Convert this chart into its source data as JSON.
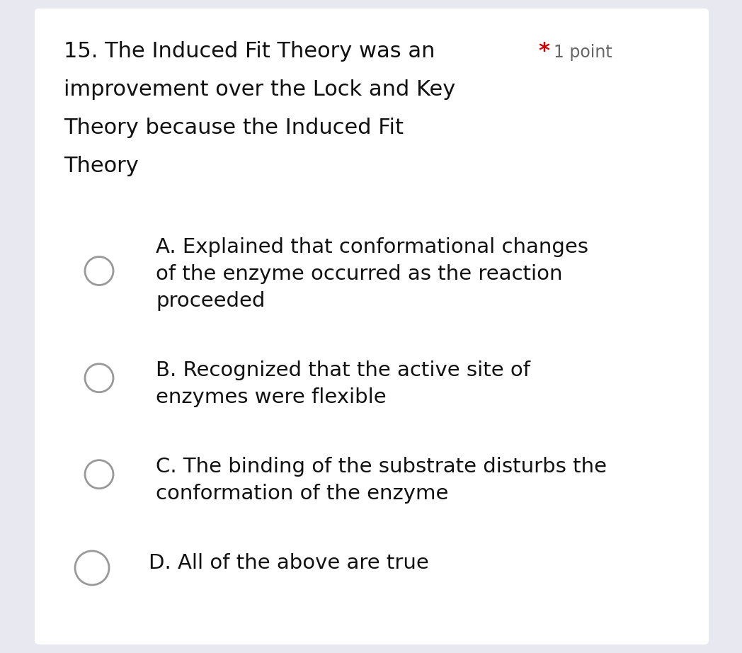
{
  "bg_color": "#e8e8f0",
  "card_color": "#ffffff",
  "question_number": "15.",
  "question_text_line1": "The Induced Fit Theory was an",
  "question_text_line2": "improvement over the Lock and Key",
  "question_text_line3": "Theory because the Induced Fit",
  "question_text_line4": "Theory",
  "required_star": "*",
  "points_text": "1 point",
  "star_color": "#cc0000",
  "points_color": "#666666",
  "question_color": "#111111",
  "option_text_color": "#111111",
  "options": [
    {
      "label": "A.",
      "lines": [
        "Explained that conformational changes",
        "of the enzyme occurred as the reaction",
        "proceeded"
      ]
    },
    {
      "label": "B.",
      "lines": [
        "Recognized that the active site of",
        "enzymes were flexible"
      ]
    },
    {
      "label": "C.",
      "lines": [
        "The binding of the substrate disturbs the",
        "conformation of the enzyme"
      ]
    },
    {
      "label": "D.",
      "lines": [
        "All of the above are true"
      ]
    }
  ],
  "circle_color": "#999999",
  "font_size_question": 22,
  "font_size_options": 21,
  "font_size_points": 17
}
